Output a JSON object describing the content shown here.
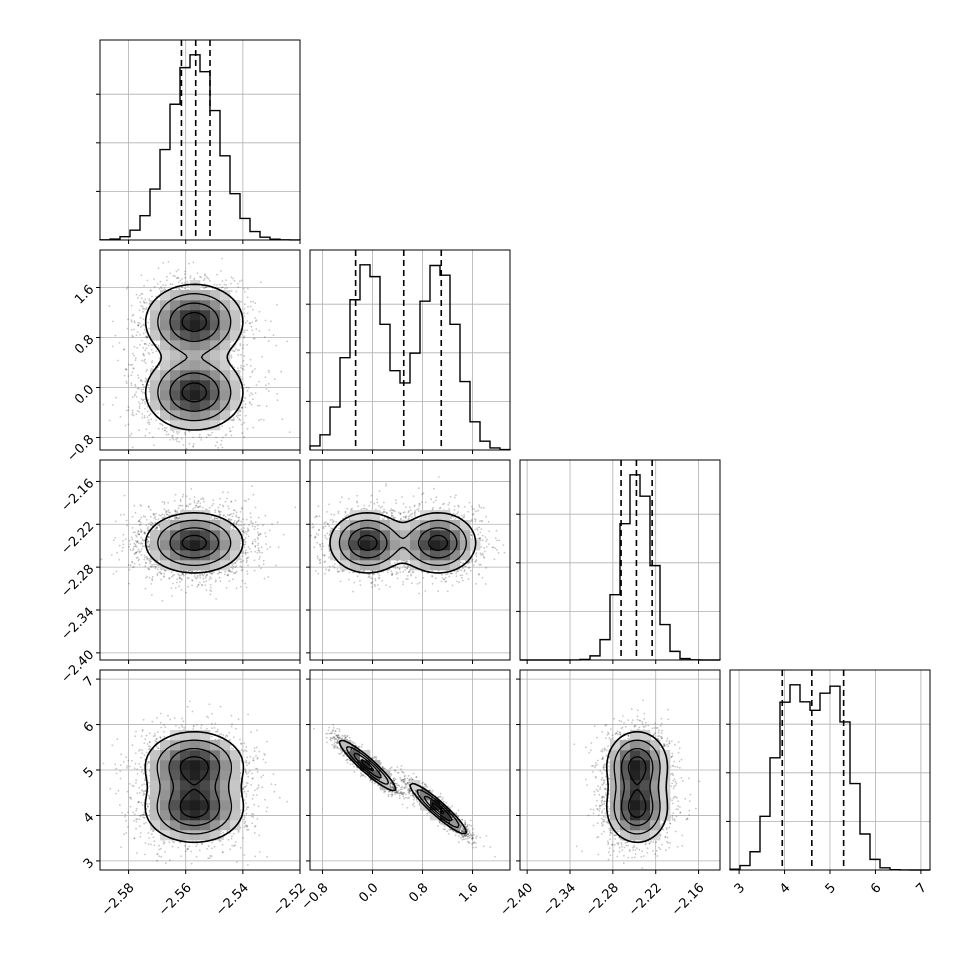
{
  "chart_data": {
    "type": "corner",
    "grid": true,
    "parameters": [
      {
        "range": [
          -2.59,
          -2.52
        ],
        "ticks": [
          -2.58,
          -2.56,
          -2.54,
          -2.52
        ],
        "tick_labels": [
          "−2.58",
          "−2.56",
          "−2.54",
          "−2.52"
        ],
        "modes": [
          {
            "center": -2.557,
            "sigma": 0.0085,
            "weight": 1
          }
        ],
        "quantiles": [
          -2.5615,
          -2.5565,
          -2.5515
        ]
      },
      {
        "range": [
          -1.0,
          2.2
        ],
        "ticks": [
          -0.8,
          0.0,
          0.8,
          1.6
        ],
        "tick_labels": [
          "−0.8",
          "0.0",
          "0.8",
          "1.6"
        ],
        "modes": [
          {
            "center": -0.08,
            "sigma": 0.3,
            "weight": 0.5
          },
          {
            "center": 1.05,
            "sigma": 0.3,
            "weight": 0.5
          }
        ],
        "quantiles": [
          -0.27,
          0.5,
          1.1
        ]
      },
      {
        "range": [
          -2.41,
          -2.13
        ],
        "ticks": [
          -2.4,
          -2.34,
          -2.28,
          -2.22,
          -2.16
        ],
        "tick_labels": [
          "−2.40",
          "−2.34",
          "−2.28",
          "−2.22",
          "−2.16"
        ],
        "modes": [
          {
            "center": -2.246,
            "sigma": 0.021,
            "weight": 1
          }
        ],
        "quantiles": [
          -2.2685,
          -2.247,
          -2.225
        ]
      },
      {
        "range": [
          2.8,
          7.2
        ],
        "ticks": [
          3,
          4,
          5,
          6,
          7
        ],
        "tick_labels": [
          "3",
          "4",
          "5",
          "6",
          "7"
        ],
        "modes": [
          {
            "center": 4.15,
            "sigma": 0.37,
            "weight": 0.5
          },
          {
            "center": 5.1,
            "sigma": 0.37,
            "weight": 0.5
          }
        ],
        "quantiles": [
          3.95,
          4.6,
          5.3
        ]
      }
    ],
    "bins": 20,
    "contour_levels_sigma": [
      0.5,
      1.0,
      1.5,
      2.0
    ],
    "samples_drawn": 3000
  }
}
